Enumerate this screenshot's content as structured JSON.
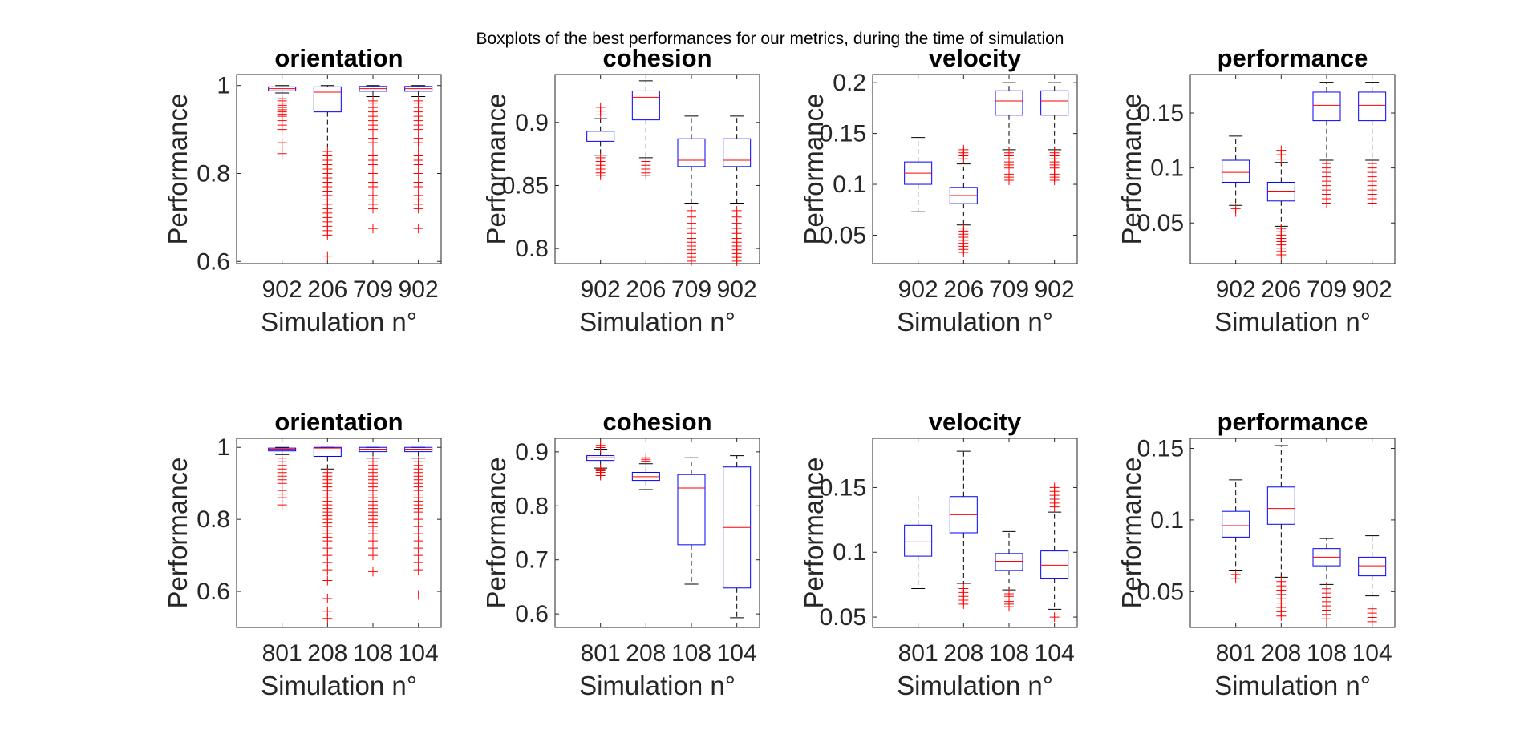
{
  "figure_title": "Boxplots of the best performances for our metrics, during the time of simulation",
  "colors": {
    "box": "#0000ff",
    "median": "#ff0000",
    "outlier": "#ff0000",
    "whisker": "#000000",
    "axes": "#262626"
  },
  "chart_data": [
    {
      "type": "boxplot",
      "title": "orientation",
      "xlabel": "Simulation n°",
      "ylabel": "Performance",
      "ylim": [
        0.595,
        1.025
      ],
      "yticks": [
        0.6,
        0.8,
        1
      ],
      "ytick_labels": [
        "0.6",
        "0.8",
        "1"
      ],
      "categories": [
        "902",
        "206",
        "709",
        "902"
      ],
      "boxes": [
        {
          "lw": 0.983,
          "q1": 0.988,
          "med": 0.993,
          "q3": 0.997,
          "uw": 1.0,
          "outliers": [
            0.97,
            0.965,
            0.96,
            0.955,
            0.95,
            0.945,
            0.94,
            0.935,
            0.93,
            0.92,
            0.91,
            0.9,
            0.87,
            0.86,
            0.845
          ]
        },
        {
          "lw": 0.86,
          "q1": 0.94,
          "med": 0.985,
          "q3": 0.997,
          "uw": 1.0,
          "outliers": [
            0.85,
            0.84,
            0.83,
            0.82,
            0.81,
            0.8,
            0.79,
            0.78,
            0.77,
            0.76,
            0.75,
            0.74,
            0.73,
            0.72,
            0.71,
            0.7,
            0.69,
            0.68,
            0.67,
            0.66,
            0.612
          ]
        },
        {
          "lw": 0.975,
          "q1": 0.987,
          "med": 0.993,
          "q3": 0.998,
          "uw": 1.0,
          "outliers": [
            0.965,
            0.96,
            0.95,
            0.94,
            0.93,
            0.92,
            0.91,
            0.9,
            0.88,
            0.87,
            0.86,
            0.84,
            0.83,
            0.82,
            0.8,
            0.78,
            0.77,
            0.75,
            0.74,
            0.73,
            0.72,
            0.675
          ]
        },
        {
          "lw": 0.975,
          "q1": 0.987,
          "med": 0.993,
          "q3": 0.998,
          "uw": 1.0,
          "outliers": [
            0.965,
            0.96,
            0.95,
            0.94,
            0.93,
            0.92,
            0.91,
            0.9,
            0.88,
            0.87,
            0.86,
            0.84,
            0.83,
            0.82,
            0.8,
            0.78,
            0.77,
            0.75,
            0.74,
            0.73,
            0.72,
            0.675
          ]
        }
      ]
    },
    {
      "type": "boxplot",
      "title": "cohesion",
      "xlabel": "Simulation n°",
      "ylabel": "Performance",
      "ylim": [
        0.788,
        0.938
      ],
      "yticks": [
        0.8,
        0.85,
        0.9
      ],
      "ytick_labels": [
        "0.8",
        "0.85",
        "0.9"
      ],
      "categories": [
        "902",
        "206",
        "709",
        "902"
      ],
      "boxes": [
        {
          "lw": 0.874,
          "q1": 0.885,
          "med": 0.89,
          "q3": 0.893,
          "uw": 0.903,
          "outliers": [
            0.912,
            0.909,
            0.906,
            0.872,
            0.869,
            0.866,
            0.863,
            0.86,
            0.858
          ]
        },
        {
          "lw": 0.872,
          "q1": 0.902,
          "med": 0.92,
          "q3": 0.925,
          "uw": 0.933,
          "outliers": [
            0.869,
            0.866,
            0.863,
            0.86,
            0.858
          ]
        },
        {
          "lw": 0.836,
          "q1": 0.865,
          "med": 0.87,
          "q3": 0.887,
          "uw": 0.905,
          "outliers": [
            0.83,
            0.825,
            0.82,
            0.816,
            0.812,
            0.808,
            0.805,
            0.802,
            0.799,
            0.796,
            0.793,
            0.79
          ]
        },
        {
          "lw": 0.836,
          "q1": 0.865,
          "med": 0.87,
          "q3": 0.887,
          "uw": 0.905,
          "outliers": [
            0.83,
            0.825,
            0.82,
            0.816,
            0.812,
            0.808,
            0.805,
            0.802,
            0.799,
            0.796,
            0.793,
            0.79
          ]
        }
      ]
    },
    {
      "type": "boxplot",
      "title": "velocity",
      "xlabel": "Simulation n°",
      "ylabel": "Performance",
      "ylim": [
        0.022,
        0.208
      ],
      "yticks": [
        0.05,
        0.1,
        0.15,
        0.2
      ],
      "ytick_labels": [
        "0.05",
        "0.1",
        "0.15",
        "0.2"
      ],
      "categories": [
        "902",
        "206",
        "709",
        "902"
      ],
      "boxes": [
        {
          "lw": 0.073,
          "q1": 0.1,
          "med": 0.111,
          "q3": 0.122,
          "uw": 0.146,
          "outliers": []
        },
        {
          "lw": 0.06,
          "q1": 0.081,
          "med": 0.089,
          "q3": 0.097,
          "uw": 0.12,
          "outliers": [
            0.134,
            0.131,
            0.128,
            0.125,
            0.057,
            0.054,
            0.051,
            0.048,
            0.045,
            0.042,
            0.039,
            0.036,
            0.033
          ]
        },
        {
          "lw": 0.134,
          "q1": 0.168,
          "med": 0.182,
          "q3": 0.192,
          "uw": 0.2,
          "outliers": [
            0.131,
            0.128,
            0.125,
            0.122,
            0.119,
            0.116,
            0.113,
            0.11,
            0.107,
            0.104
          ]
        },
        {
          "lw": 0.134,
          "q1": 0.168,
          "med": 0.182,
          "q3": 0.192,
          "uw": 0.2,
          "outliers": [
            0.131,
            0.128,
            0.125,
            0.122,
            0.119,
            0.116,
            0.113,
            0.11,
            0.107,
            0.104
          ]
        }
      ]
    },
    {
      "type": "boxplot",
      "title": "performance",
      "xlabel": "Simulation n°",
      "ylabel": "Performance",
      "ylim": [
        0.013,
        0.185
      ],
      "yticks": [
        0.05,
        0.1,
        0.15
      ],
      "ytick_labels": [
        "0.05",
        "0.1",
        "0.15"
      ],
      "categories": [
        "902",
        "206",
        "709",
        "902"
      ],
      "boxes": [
        {
          "lw": 0.066,
          "q1": 0.087,
          "med": 0.096,
          "q3": 0.107,
          "uw": 0.129,
          "outliers": [
            0.063,
            0.06
          ]
        },
        {
          "lw": 0.047,
          "q1": 0.07,
          "med": 0.079,
          "q3": 0.087,
          "uw": 0.105,
          "outliers": [
            0.116,
            0.112,
            0.108,
            0.045,
            0.042,
            0.039,
            0.036,
            0.033,
            0.03,
            0.027,
            0.024,
            0.021
          ]
        },
        {
          "lw": 0.107,
          "q1": 0.143,
          "med": 0.157,
          "q3": 0.169,
          "uw": 0.178,
          "outliers": [
            0.104,
            0.1,
            0.096,
            0.092,
            0.088,
            0.084,
            0.08,
            0.076,
            0.072,
            0.068
          ]
        },
        {
          "lw": 0.107,
          "q1": 0.143,
          "med": 0.157,
          "q3": 0.169,
          "uw": 0.178,
          "outliers": [
            0.104,
            0.1,
            0.096,
            0.092,
            0.088,
            0.084,
            0.08,
            0.076,
            0.072,
            0.068
          ]
        }
      ]
    },
    {
      "type": "boxplot",
      "title": "orientation",
      "xlabel": "Simulation n°",
      "ylabel": "Performance",
      "ylim": [
        0.5,
        1.025
      ],
      "yticks": [
        0.6,
        0.8,
        1
      ],
      "ytick_labels": [
        "0.6",
        "0.8",
        "1"
      ],
      "categories": [
        "801",
        "208",
        "108",
        "104"
      ],
      "boxes": [
        {
          "lw": 0.98,
          "q1": 0.99,
          "med": 0.995,
          "q3": 0.998,
          "uw": 1.0,
          "outliers": [
            0.97,
            0.96,
            0.95,
            0.94,
            0.93,
            0.92,
            0.91,
            0.9,
            0.88,
            0.87,
            0.86,
            0.84
          ]
        },
        {
          "lw": 0.94,
          "q1": 0.975,
          "med": 0.998,
          "q3": 1.0,
          "uw": 1.0,
          "outliers": [
            0.93,
            0.92,
            0.91,
            0.9,
            0.89,
            0.88,
            0.87,
            0.86,
            0.85,
            0.84,
            0.83,
            0.82,
            0.81,
            0.8,
            0.79,
            0.78,
            0.77,
            0.76,
            0.75,
            0.74,
            0.72,
            0.7,
            0.68,
            0.66,
            0.63,
            0.58,
            0.545,
            0.525
          ]
        },
        {
          "lw": 0.97,
          "q1": 0.988,
          "med": 0.995,
          "q3": 1.0,
          "uw": 1.0,
          "outliers": [
            0.96,
            0.95,
            0.94,
            0.93,
            0.92,
            0.91,
            0.9,
            0.89,
            0.88,
            0.87,
            0.86,
            0.85,
            0.84,
            0.83,
            0.82,
            0.81,
            0.8,
            0.79,
            0.78,
            0.77,
            0.76,
            0.74,
            0.72,
            0.7,
            0.655
          ]
        },
        {
          "lw": 0.97,
          "q1": 0.988,
          "med": 0.995,
          "q3": 1.0,
          "uw": 1.0,
          "outliers": [
            0.96,
            0.95,
            0.94,
            0.93,
            0.92,
            0.91,
            0.9,
            0.89,
            0.88,
            0.87,
            0.86,
            0.85,
            0.84,
            0.83,
            0.82,
            0.8,
            0.78,
            0.76,
            0.74,
            0.72,
            0.7,
            0.68,
            0.66,
            0.59
          ]
        }
      ]
    },
    {
      "type": "boxplot",
      "title": "cohesion",
      "xlabel": "Simulation n°",
      "ylabel": "Performance",
      "ylim": [
        0.575,
        0.925
      ],
      "yticks": [
        0.6,
        0.7,
        0.8,
        0.9
      ],
      "ytick_labels": [
        "0.6",
        "0.7",
        "0.8",
        "0.9"
      ],
      "categories": [
        "801",
        "208",
        "108",
        "104"
      ],
      "boxes": [
        {
          "lw": 0.87,
          "q1": 0.884,
          "med": 0.889,
          "q3": 0.893,
          "uw": 0.905,
          "outliers": [
            0.912,
            0.908,
            0.868,
            0.865,
            0.862,
            0.859,
            0.856
          ]
        },
        {
          "lw": 0.83,
          "q1": 0.847,
          "med": 0.854,
          "q3": 0.862,
          "uw": 0.878,
          "outliers": [
            0.889,
            0.886,
            0.883
          ]
        },
        {
          "lw": 0.655,
          "q1": 0.728,
          "med": 0.833,
          "q3": 0.858,
          "uw": 0.889,
          "outliers": []
        },
        {
          "lw": 0.593,
          "q1": 0.648,
          "med": 0.76,
          "q3": 0.872,
          "uw": 0.893,
          "outliers": []
        }
      ]
    },
    {
      "type": "boxplot",
      "title": "velocity",
      "xlabel": "Simulation n°",
      "ylabel": "Performance",
      "ylim": [
        0.042,
        0.188
      ],
      "yticks": [
        0.05,
        0.1,
        0.15
      ],
      "ytick_labels": [
        "0.05",
        "0.1",
        "0.15"
      ],
      "categories": [
        "801",
        "208",
        "108",
        "104"
      ],
      "boxes": [
        {
          "lw": 0.072,
          "q1": 0.097,
          "med": 0.108,
          "q3": 0.121,
          "uw": 0.145,
          "outliers": []
        },
        {
          "lw": 0.076,
          "q1": 0.115,
          "med": 0.129,
          "q3": 0.143,
          "uw": 0.178,
          "outliers": [
            0.072,
            0.069,
            0.066,
            0.063,
            0.06
          ]
        },
        {
          "lw": 0.071,
          "q1": 0.086,
          "med": 0.093,
          "q3": 0.099,
          "uw": 0.116,
          "outliers": [
            0.068,
            0.066,
            0.064,
            0.062,
            0.06,
            0.058
          ]
        },
        {
          "lw": 0.056,
          "q1": 0.08,
          "med": 0.09,
          "q3": 0.101,
          "uw": 0.131,
          "outliers": [
            0.15,
            0.147,
            0.144,
            0.141,
            0.138,
            0.135,
            0.05
          ]
        }
      ]
    },
    {
      "type": "boxplot",
      "title": "performance",
      "xlabel": "Simulation n°",
      "ylabel": "Performance",
      "ylim": [
        0.025,
        0.157
      ],
      "yticks": [
        0.05,
        0.1,
        0.15
      ],
      "ytick_labels": [
        "0.05",
        "0.1",
        "0.15"
      ],
      "categories": [
        "801",
        "208",
        "108",
        "104"
      ],
      "boxes": [
        {
          "lw": 0.065,
          "q1": 0.088,
          "med": 0.096,
          "q3": 0.106,
          "uw": 0.128,
          "outliers": [
            0.062,
            0.059
          ]
        },
        {
          "lw": 0.06,
          "q1": 0.097,
          "med": 0.108,
          "q3": 0.123,
          "uw": 0.152,
          "outliers": [
            0.057,
            0.054,
            0.051,
            0.048,
            0.045,
            0.042,
            0.039,
            0.036,
            0.033
          ]
        },
        {
          "lw": 0.055,
          "q1": 0.068,
          "med": 0.074,
          "q3": 0.08,
          "uw": 0.087,
          "outliers": [
            0.052,
            0.049,
            0.046,
            0.043,
            0.04,
            0.037,
            0.034,
            0.031
          ]
        },
        {
          "lw": 0.047,
          "q1": 0.061,
          "med": 0.068,
          "q3": 0.074,
          "uw": 0.089,
          "outliers": [
            0.038,
            0.035,
            0.032,
            0.029
          ]
        }
      ]
    }
  ]
}
